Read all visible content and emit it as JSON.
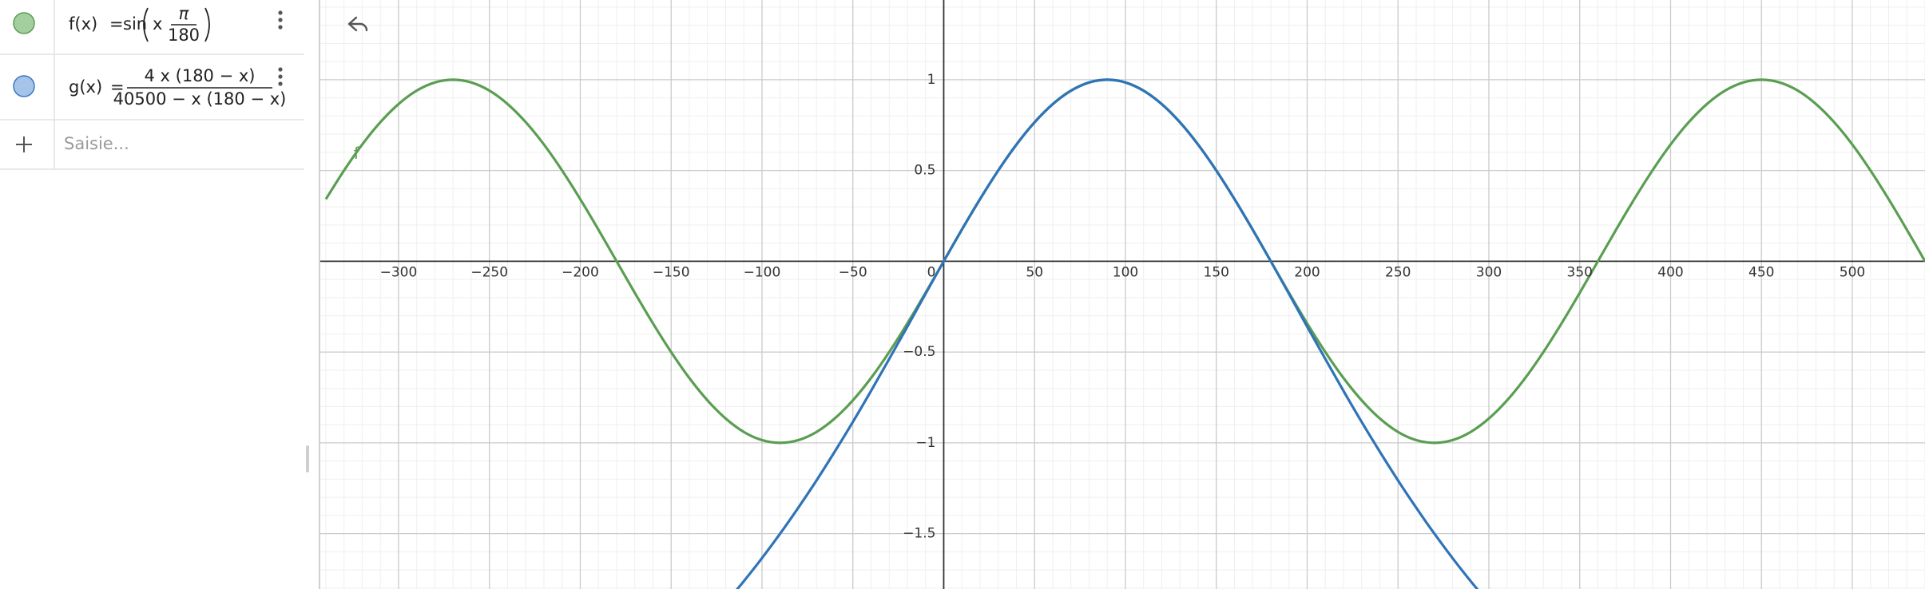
{
  "algebra": {
    "entries": [
      {
        "lhs": "f(x)",
        "eq": "=",
        "func": "sin",
        "arg": "x",
        "num": "π",
        "den": "180",
        "icon_fill": "#a3cf9e",
        "icon_stroke": "#5a9e52"
      },
      {
        "lhs": "g(x)",
        "eq": "=",
        "num": "4 x (180 − x)",
        "den": "40500 − x (180 − x)",
        "icon_fill": "#a6c4ea",
        "icon_stroke": "#3c78c0"
      }
    ],
    "input_placeholder": "Saisie..."
  },
  "chart_data": {
    "type": "line",
    "xlim": [
      -343.5,
      540
    ],
    "ylim": [
      -1.805,
      1.439
    ],
    "xticks": [
      {
        "value": -300,
        "label": "−300"
      },
      {
        "value": -250,
        "label": "−250"
      },
      {
        "value": -200,
        "label": "−200"
      },
      {
        "value": -150,
        "label": "−150"
      },
      {
        "value": -100,
        "label": "−100"
      },
      {
        "value": -50,
        "label": "−50"
      },
      0,
      50,
      100,
      150,
      200,
      250,
      300,
      350,
      400,
      450,
      500
    ],
    "yticks": [
      {
        "value": -1.5,
        "label": "−1.5"
      },
      {
        "value": -1,
        "label": "−1"
      },
      {
        "value": -0.5,
        "label": "−0.5"
      },
      0.5,
      1
    ],
    "grid": true,
    "series": [
      {
        "name": "f",
        "color": "#5a9e52",
        "x": [
          -340,
          -330,
          -320,
          -310,
          -300,
          -290,
          -280,
          -270,
          -260,
          -250,
          -240,
          -230,
          -220,
          -210,
          -200,
          -190,
          -180,
          -170,
          -160,
          -150,
          -140,
          -130,
          -120,
          -110,
          -100,
          -90,
          -80,
          -70,
          -60,
          -50,
          -40,
          -30,
          -20,
          -10,
          0,
          10,
          20,
          30,
          40,
          50,
          60,
          70,
          80,
          90,
          100,
          110,
          120,
          130,
          140,
          150,
          160,
          170,
          180,
          190,
          200,
          210,
          220,
          230,
          240,
          250,
          260,
          270,
          280,
          290,
          300,
          310,
          320,
          330,
          340,
          350,
          360,
          370,
          380,
          390,
          400,
          410,
          420,
          430,
          440,
          450,
          460,
          470,
          480,
          490,
          500,
          510,
          520,
          530,
          540
        ],
        "values": [
          0.342,
          0.5,
          0.643,
          0.766,
          0.866,
          0.94,
          0.985,
          1,
          0.985,
          0.94,
          0.866,
          0.766,
          0.643,
          0.5,
          0.342,
          0.174,
          0,
          -0.174,
          -0.342,
          -0.5,
          -0.643,
          -0.766,
          -0.866,
          -0.94,
          -0.985,
          -1,
          -0.985,
          -0.94,
          -0.866,
          -0.766,
          -0.643,
          -0.5,
          -0.342,
          -0.174,
          0,
          0.174,
          0.342,
          0.5,
          0.643,
          0.766,
          0.866,
          0.94,
          0.985,
          1,
          0.985,
          0.94,
          0.866,
          0.766,
          0.643,
          0.5,
          0.342,
          0.174,
          0,
          -0.174,
          -0.342,
          -0.5,
          -0.643,
          -0.766,
          -0.866,
          -0.94,
          -0.985,
          -1,
          -0.985,
          -0.94,
          -0.866,
          -0.766,
          -0.643,
          -0.5,
          -0.342,
          -0.174,
          0,
          0.174,
          0.342,
          0.5,
          0.643,
          0.766,
          0.866,
          0.94,
          0.985,
          1,
          0.985,
          0.94,
          0.866,
          0.766,
          0.643,
          0.5,
          0.342,
          0.174,
          0
        ]
      },
      {
        "color": "#2f73b8",
        "x": [
          -120,
          -110,
          -100,
          -90,
          -80,
          -70,
          -60,
          -50,
          -40,
          -30,
          -20,
          -10,
          0,
          10,
          20,
          30,
          40,
          50,
          60,
          70,
          80,
          90,
          100,
          110,
          120,
          130,
          140,
          150,
          160,
          170,
          180,
          190,
          200,
          210,
          220,
          230,
          240,
          250,
          260,
          270,
          280,
          290,
          300
        ],
        "values": [
          -1.882,
          -1.762,
          -1.635,
          -1.5,
          -1.357,
          -1.207,
          -1.049,
          -0.885,
          -0.714,
          -0.538,
          -0.36,
          -0.179,
          0,
          0.175,
          0.343,
          0.5,
          0.642,
          0.765,
          0.865,
          0.939,
          0.985,
          1,
          0.985,
          0.939,
          0.865,
          0.765,
          0.642,
          0.5,
          0.343,
          0.175,
          0,
          -0.179,
          -0.36,
          -0.538,
          -0.714,
          -0.885,
          -1.049,
          -1.207,
          -1.357,
          -1.5,
          -1.635,
          -1.762,
          -1.882
        ]
      }
    ]
  }
}
